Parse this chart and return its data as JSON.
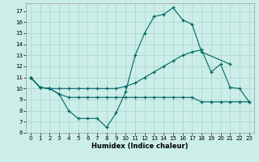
{
  "xlabel": "Humidex (Indice chaleur)",
  "background_color": "#cceee8",
  "grid_color": "#b0d8d4",
  "line_color": "#006666",
  "xlim": [
    -0.5,
    23.5
  ],
  "ylim": [
    6,
    17.7
  ],
  "yticks": [
    6,
    7,
    8,
    9,
    10,
    11,
    12,
    13,
    14,
    15,
    16,
    17
  ],
  "xticks": [
    0,
    1,
    2,
    3,
    4,
    5,
    6,
    7,
    8,
    9,
    10,
    11,
    12,
    13,
    14,
    15,
    16,
    17,
    18,
    19,
    20,
    21,
    22,
    23
  ],
  "series": [
    {
      "x": [
        0,
        1,
        2,
        3,
        4,
        5,
        6,
        7,
        8,
        9,
        10,
        11,
        12,
        13,
        14,
        15,
        16,
        17,
        18,
        21
      ],
      "y": [
        11,
        10.1,
        10.0,
        9.5,
        8.0,
        7.3,
        7.3,
        7.3,
        6.5,
        7.8,
        9.7,
        13.0,
        15.0,
        16.5,
        16.7,
        17.3,
        16.2,
        15.8,
        13.3,
        12.2
      ]
    },
    {
      "x": [
        0,
        1,
        2,
        3,
        4,
        5,
        6,
        7,
        8,
        9,
        10,
        11,
        12,
        13,
        14,
        15,
        16,
        17,
        18,
        19,
        20,
        21,
        22,
        23
      ],
      "y": [
        11,
        10.1,
        10.0,
        10.0,
        10.0,
        10.0,
        10.0,
        10.0,
        10.0,
        10.0,
        10.2,
        10.5,
        11.0,
        11.5,
        12.0,
        12.5,
        13.0,
        13.3,
        13.5,
        11.5,
        12.2,
        10.1,
        10.0,
        8.8
      ]
    },
    {
      "x": [
        0,
        1,
        2,
        3,
        4,
        5,
        6,
        7,
        8,
        9,
        10,
        11,
        12,
        13,
        14,
        15,
        16,
        17,
        18,
        19,
        20,
        21,
        22,
        23
      ],
      "y": [
        11,
        10.1,
        10.0,
        9.5,
        9.2,
        9.2,
        9.2,
        9.2,
        9.2,
        9.2,
        9.2,
        9.2,
        9.2,
        9.2,
        9.2,
        9.2,
        9.2,
        9.2,
        8.8,
        8.8,
        8.8,
        8.8,
        8.8,
        8.8
      ]
    }
  ]
}
